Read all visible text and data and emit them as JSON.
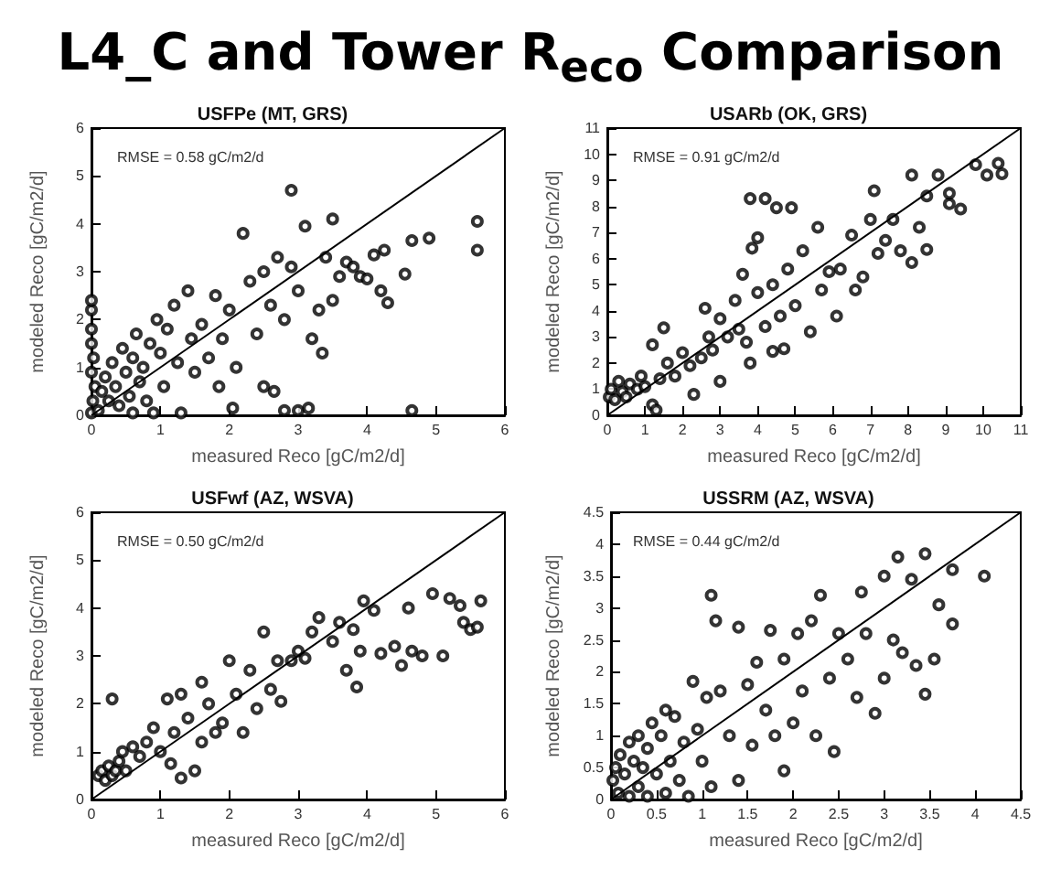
{
  "chart_data": [
    {
      "type": "scatter",
      "title": "L4_C and Tower R$_{eco}$ Comparison",
      "subtitle": "USFPe (MT, GRS)",
      "xlabel": "measured Reco [gC/m2/d]",
      "ylabel": "modeled Reco [gC/m2/d]",
      "annotations": [
        "RMSE = 0.58 gC/m2/d"
      ],
      "xlim": [
        0,
        6
      ],
      "ylim": [
        0,
        6
      ],
      "xticks": [
        0,
        1,
        2,
        3,
        4,
        5,
        6
      ],
      "yticks": [
        0,
        1,
        2,
        3,
        4,
        5,
        6
      ],
      "marker": "circle",
      "series": [
        {
          "color": "#000000",
          "x": [
            0,
            0.02,
            0.05,
            0,
            0.03,
            0,
            0,
            0,
            0,
            0.1,
            0.15,
            0.2,
            0.25,
            0.3,
            0.35,
            0.4,
            0.45,
            0.5,
            0.55,
            0.6,
            0.6,
            0.65,
            0.7,
            0.75,
            0.8,
            0.85,
            0.9,
            0.95,
            1.0,
            1.05,
            1.1,
            1.2,
            1.25,
            1.3,
            1.4,
            1.45,
            1.5,
            1.6,
            1.7,
            1.8,
            1.85,
            1.9,
            2.0,
            2.05,
            2.1,
            2.2,
            2.3,
            2.4,
            2.5,
            2.5,
            2.6,
            2.65,
            2.7,
            2.8,
            2.8,
            2.9,
            2.9,
            3.0,
            3.0,
            3.1,
            3.15,
            3.2,
            3.3,
            3.35,
            3.4,
            3.5,
            3.5,
            3.6,
            3.7,
            3.8,
            3.9,
            4.0,
            4.1,
            4.2,
            4.25,
            4.3,
            4.55,
            4.65,
            4.65,
            4.9,
            5.6,
            5.6
          ],
          "values": [
            0.05,
            0.3,
            0.6,
            0.9,
            1.2,
            1.5,
            1.8,
            2.2,
            2.4,
            0.1,
            0.5,
            0.8,
            0.3,
            1.1,
            0.6,
            0.2,
            1.4,
            0.9,
            0.4,
            1.2,
            0.05,
            1.7,
            0.7,
            1.0,
            0.3,
            1.5,
            0.05,
            2.0,
            1.3,
            0.6,
            1.8,
            2.3,
            1.1,
            0.05,
            2.6,
            1.6,
            0.9,
            1.9,
            1.2,
            2.5,
            0.6,
            1.6,
            2.2,
            0.15,
            1.0,
            3.8,
            2.8,
            1.7,
            3.0,
            0.6,
            2.3,
            0.5,
            3.3,
            0.1,
            2.0,
            4.7,
            3.1,
            0.1,
            2.6,
            3.95,
            0.15,
            1.6,
            2.2,
            1.3,
            3.3,
            4.1,
            2.4,
            2.9,
            3.2,
            3.1,
            2.9,
            2.85,
            3.35,
            2.6,
            3.45,
            2.35,
            2.95,
            3.65,
            0.1,
            3.7,
            4.05,
            3.45
          ]
        },
        {
          "type": "line",
          "color": "#000000",
          "marker": "none",
          "x": [
            0,
            6
          ],
          "values": [
            0,
            6
          ]
        }
      ]
    },
    {
      "type": "scatter",
      "title": "USARb (OK, GRS)",
      "xlabel": "measured Reco [gC/m2/d]",
      "ylabel": "modeled Reco [gC/m2/d]",
      "annotations": [
        "RMSE = 0.91 gC/m2/d"
      ],
      "xlim": [
        0,
        11
      ],
      "ylim": [
        0,
        11
      ],
      "xticks": [
        0,
        1,
        2,
        3,
        4,
        5,
        6,
        7,
        8,
        9,
        10,
        11
      ],
      "yticks": [
        0,
        1,
        2,
        3,
        4,
        5,
        6,
        7,
        8,
        9,
        10,
        11
      ],
      "marker": "circle",
      "series": [
        {
          "color": "#000000",
          "x": [
            0.05,
            0.1,
            0.2,
            0.3,
            0.4,
            0.5,
            0.6,
            0.8,
            0.9,
            1.0,
            1.2,
            1.3,
            1.2,
            1.4,
            1.5,
            1.6,
            1.8,
            2.0,
            2.2,
            2.3,
            2.5,
            2.6,
            2.7,
            2.8,
            3.0,
            3.0,
            3.2,
            3.4,
            3.5,
            3.6,
            3.7,
            3.8,
            3.8,
            3.85,
            4.0,
            4.0,
            4.2,
            4.2,
            4.4,
            4.4,
            4.5,
            4.6,
            4.7,
            4.8,
            4.9,
            5.0,
            5.2,
            5.4,
            5.6,
            5.7,
            5.9,
            6.1,
            6.2,
            6.5,
            6.6,
            6.8,
            7.0,
            7.1,
            7.2,
            7.4,
            7.6,
            7.8,
            8.1,
            8.1,
            8.3,
            8.5,
            8.5,
            8.8,
            9.1,
            9.1,
            9.4,
            9.8,
            10.1,
            10.4,
            10.5
          ],
          "values": [
            0.7,
            1.0,
            0.6,
            1.3,
            0.9,
            0.7,
            1.2,
            1.0,
            1.5,
            1.1,
            0.4,
            0.2,
            2.7,
            1.4,
            3.35,
            2.0,
            1.5,
            2.4,
            1.9,
            0.8,
            2.2,
            4.1,
            3.0,
            2.5,
            1.3,
            3.7,
            3.0,
            4.4,
            3.3,
            5.4,
            2.8,
            2.0,
            8.3,
            6.4,
            6.8,
            4.7,
            8.3,
            3.4,
            2.45,
            5.0,
            7.95,
            3.8,
            2.55,
            5.6,
            7.95,
            4.2,
            6.3,
            3.2,
            7.2,
            4.8,
            5.5,
            3.8,
            5.6,
            6.9,
            4.8,
            5.3,
            7.5,
            8.6,
            6.2,
            6.7,
            7.5,
            6.3,
            9.2,
            5.85,
            7.2,
            6.35,
            8.4,
            9.2,
            8.1,
            8.5,
            7.9,
            9.6,
            9.2,
            9.65,
            9.25
          ]
        },
        {
          "type": "line",
          "color": "#000000",
          "marker": "none",
          "x": [
            0,
            11
          ],
          "values": [
            0,
            11
          ]
        }
      ]
    },
    {
      "type": "scatter",
      "title": "USFwf (AZ, WSVA)",
      "xlabel": "measured Reco [gC/m2/d]",
      "ylabel": "modeled Reco [gC/m2/d]",
      "annotations": [
        "RMSE = 0.50 gC/m2/d"
      ],
      "xlim": [
        0,
        6
      ],
      "ylim": [
        0,
        6
      ],
      "xticks": [
        0,
        1,
        2,
        3,
        4,
        5,
        6
      ],
      "yticks": [
        0,
        1,
        2,
        3,
        4,
        5,
        6
      ],
      "marker": "circle",
      "series": [
        {
          "color": "#000000",
          "x": [
            0.1,
            0.15,
            0.2,
            0.25,
            0.3,
            0.3,
            0.35,
            0.4,
            0.45,
            0.5,
            0.6,
            0.7,
            0.8,
            0.9,
            1.0,
            1.1,
            1.15,
            1.2,
            1.3,
            1.3,
            1.4,
            1.5,
            1.6,
            1.6,
            1.7,
            1.8,
            1.9,
            2.0,
            2.1,
            2.2,
            2.3,
            2.4,
            2.5,
            2.6,
            2.7,
            2.75,
            2.9,
            3.0,
            3.1,
            3.2,
            3.3,
            3.5,
            3.6,
            3.7,
            3.8,
            3.85,
            3.9,
            3.95,
            4.1,
            4.2,
            4.4,
            4.5,
            4.6,
            4.65,
            4.8,
            4.95,
            5.1,
            5.2,
            5.35,
            5.4,
            5.5,
            5.6,
            5.65
          ],
          "values": [
            0.5,
            0.6,
            0.4,
            0.7,
            2.1,
            0.5,
            0.6,
            0.8,
            1.0,
            0.6,
            1.1,
            0.9,
            1.2,
            1.5,
            1.0,
            2.1,
            0.75,
            1.4,
            0.45,
            2.2,
            1.7,
            0.6,
            1.2,
            2.45,
            2.0,
            1.4,
            1.6,
            2.9,
            2.2,
            1.4,
            2.7,
            1.9,
            3.5,
            2.3,
            2.9,
            2.05,
            2.9,
            3.1,
            2.95,
            3.5,
            3.8,
            3.3,
            3.7,
            2.7,
            3.55,
            2.35,
            3.1,
            4.15,
            3.95,
            3.05,
            3.2,
            2.8,
            4.0,
            3.1,
            3.0,
            4.3,
            3.0,
            4.2,
            4.05,
            3.7,
            3.55,
            3.6,
            4.15
          ]
        },
        {
          "type": "line",
          "color": "#000000",
          "marker": "none",
          "x": [
            0,
            6
          ],
          "values": [
            0,
            6
          ]
        }
      ]
    },
    {
      "type": "scatter",
      "title": "USSRM (AZ, WSVA)",
      "xlabel": "measured Reco [gC/m2/d]",
      "ylabel": "modeled Reco [gC/m2/d]",
      "annotations": [
        "RMSE = 0.44 gC/m2/d"
      ],
      "xlim": [
        0,
        4.5
      ],
      "ylim": [
        0,
        4.5
      ],
      "xticks": [
        0,
        0.5,
        1,
        1.5,
        2,
        2.5,
        3,
        3.5,
        4,
        4.5
      ],
      "yticks": [
        0,
        0.5,
        1,
        1.5,
        2,
        2.5,
        3,
        3.5,
        4,
        4.5
      ],
      "marker": "circle",
      "series": [
        {
          "color": "#000000",
          "x": [
            0.02,
            0.05,
            0.08,
            0.1,
            0.15,
            0.2,
            0.2,
            0.25,
            0.3,
            0.3,
            0.35,
            0.4,
            0.4,
            0.45,
            0.5,
            0.55,
            0.6,
            0.6,
            0.65,
            0.7,
            0.75,
            0.8,
            0.85,
            0.9,
            0.95,
            1.0,
            1.05,
            1.1,
            1.1,
            1.15,
            1.2,
            1.3,
            1.4,
            1.4,
            1.5,
            1.55,
            1.6,
            1.7,
            1.75,
            1.8,
            1.9,
            1.9,
            2.0,
            2.05,
            2.1,
            2.2,
            2.25,
            2.3,
            2.4,
            2.45,
            2.5,
            2.6,
            2.7,
            2.75,
            2.8,
            2.9,
            3.0,
            3.0,
            3.1,
            3.15,
            3.2,
            3.3,
            3.35,
            3.45,
            3.45,
            3.55,
            3.6,
            3.75,
            3.75,
            4.1
          ],
          "values": [
            0.3,
            0.5,
            0.1,
            0.7,
            0.4,
            0.9,
            0.05,
            0.6,
            1.0,
            0.2,
            0.5,
            0.8,
            0.05,
            1.2,
            0.4,
            1.0,
            0.1,
            1.4,
            0.6,
            1.3,
            0.3,
            0.9,
            0.05,
            1.85,
            1.1,
            0.6,
            1.6,
            3.2,
            0.2,
            2.8,
            1.7,
            1.0,
            2.7,
            0.3,
            1.8,
            0.85,
            2.15,
            1.4,
            2.65,
            1.0,
            0.45,
            2.2,
            1.2,
            2.6,
            1.7,
            2.8,
            1.0,
            3.2,
            1.9,
            0.75,
            2.6,
            2.2,
            1.6,
            3.25,
            2.6,
            1.35,
            3.5,
            1.9,
            2.5,
            3.8,
            2.3,
            3.45,
            2.1,
            3.85,
            1.65,
            2.2,
            3.05,
            3.6,
            2.75,
            3.5
          ]
        },
        {
          "type": "line",
          "color": "#000000",
          "marker": "none",
          "x": [
            0,
            4.5
          ],
          "values": [
            0,
            4.5
          ]
        }
      ]
    }
  ]
}
